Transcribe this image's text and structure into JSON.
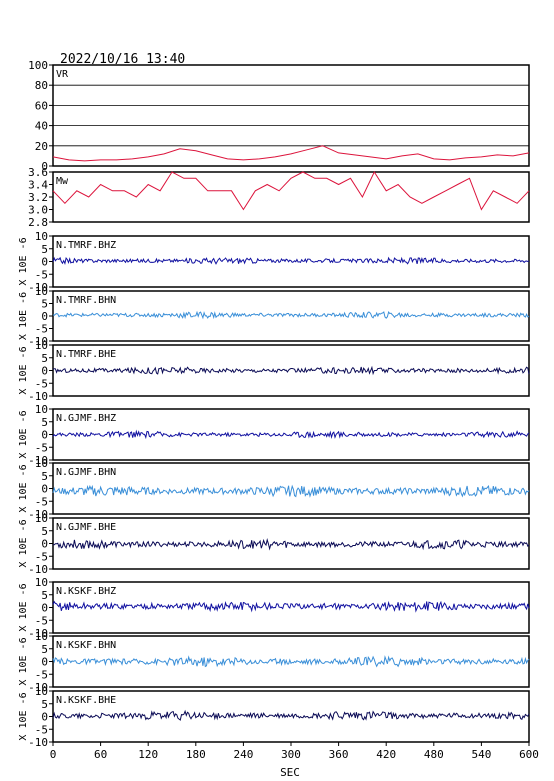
{
  "header": {
    "timestamp": "2022/10/16  13:40"
  },
  "xaxis": {
    "label": "SEC",
    "ticks": [
      0,
      60,
      120,
      180,
      240,
      300,
      360,
      420,
      480,
      540,
      600
    ]
  },
  "chart_data": [
    {
      "type": "line",
      "label": "VR",
      "ylim": [
        0,
        100
      ],
      "yticks": [
        0,
        20,
        40,
        60,
        80,
        100
      ],
      "grid": true,
      "color": "#dc143c",
      "x": [
        0,
        20,
        40,
        60,
        80,
        100,
        120,
        140,
        160,
        180,
        200,
        220,
        240,
        260,
        280,
        300,
        320,
        340,
        360,
        380,
        400,
        420,
        440,
        460,
        480,
        500,
        520,
        540,
        560,
        580,
        600
      ],
      "values": [
        9,
        6,
        5,
        6,
        6,
        7,
        9,
        12,
        17,
        15,
        11,
        7,
        6,
        7,
        9,
        12,
        16,
        20,
        13,
        11,
        9,
        7,
        10,
        12,
        7,
        6,
        8,
        9,
        11,
        10,
        13
      ]
    },
    {
      "type": "line",
      "label": "Mw",
      "ylim": [
        2.8,
        3.6
      ],
      "yticks": [
        2.8,
        3.0,
        3.2,
        3.4,
        3.6
      ],
      "color": "#dc143c",
      "x": [
        0,
        15,
        30,
        45,
        60,
        75,
        90,
        105,
        120,
        135,
        150,
        165,
        180,
        195,
        210,
        225,
        240,
        255,
        270,
        285,
        300,
        315,
        330,
        345,
        360,
        375,
        390,
        405,
        420,
        435,
        450,
        465,
        480,
        495,
        510,
        525,
        540,
        555,
        570,
        585,
        600
      ],
      "values": [
        3.3,
        3.1,
        3.3,
        3.2,
        3.4,
        3.3,
        3.3,
        3.2,
        3.4,
        3.3,
        3.6,
        3.5,
        3.5,
        3.3,
        3.3,
        3.3,
        3.0,
        3.3,
        3.4,
        3.3,
        3.5,
        3.6,
        3.5,
        3.5,
        3.4,
        3.5,
        3.2,
        3.6,
        3.3,
        3.4,
        3.2,
        3.1,
        3.2,
        3.3,
        3.4,
        3.5,
        3.0,
        3.3,
        3.2,
        3.1,
        3.3
      ]
    },
    {
      "type": "line",
      "label": "N.TMRF.BHZ",
      "ylabel": "X 10E -6",
      "ylim": [
        -10,
        10
      ],
      "yticks": [
        -10,
        -5,
        0,
        5,
        10
      ],
      "color": "#1010a0",
      "amplitude": 0.7,
      "offset": 0.3
    },
    {
      "type": "line",
      "label": "N.TMRF.BHN",
      "ylabel": "X 10E -6",
      "ylim": [
        -10,
        10
      ],
      "yticks": [
        -10,
        -5,
        0,
        5,
        10
      ],
      "color": "#3a8fd8",
      "amplitude": 0.7,
      "offset": 0.4
    },
    {
      "type": "line",
      "label": "N.TMRF.BHE",
      "ylabel": "X 10E -6",
      "ylim": [
        -10,
        10
      ],
      "yticks": [
        -10,
        -5,
        0,
        5,
        10
      ],
      "color": "#0a0a55",
      "amplitude": 0.8,
      "offset": 0.0
    },
    {
      "type": "line",
      "label": "N.GJMF.BHZ",
      "ylabel": "X 10E -6",
      "ylim": [
        -10,
        10
      ],
      "yticks": [
        -10,
        -5,
        0,
        5,
        10
      ],
      "color": "#1010a0",
      "amplitude": 0.7,
      "offset": 0.0
    },
    {
      "type": "line",
      "label": "N.GJMF.BHN",
      "ylabel": "X 10E -6",
      "ylim": [
        -10,
        10
      ],
      "yticks": [
        -10,
        -5,
        0,
        5,
        10
      ],
      "color": "#3a8fd8",
      "amplitude": 1.2,
      "offset": -1.0
    },
    {
      "type": "line",
      "label": "N.GJMF.BHE",
      "ylabel": "X 10E -6",
      "ylim": [
        -10,
        10
      ],
      "yticks": [
        -10,
        -5,
        0,
        5,
        10
      ],
      "color": "#0a0a55",
      "amplitude": 1.0,
      "offset": -0.3
    },
    {
      "type": "line",
      "label": "N.KSKF.BHZ",
      "ylabel": "X 10E -6",
      "ylim": [
        -10,
        10
      ],
      "yticks": [
        -10,
        -5,
        0,
        5,
        10
      ],
      "color": "#1010a0",
      "amplitude": 1.1,
      "offset": 0.5
    },
    {
      "type": "line",
      "label": "N.KSKF.BHN",
      "ylabel": "X 10E -6",
      "ylim": [
        -10,
        10
      ],
      "yticks": [
        -10,
        -5,
        0,
        5,
        10
      ],
      "color": "#3a8fd8",
      "amplitude": 1.1,
      "offset": 0.0
    },
    {
      "type": "line",
      "label": "N.KSKF.BHE",
      "ylabel": "X 10E -6",
      "ylim": [
        -10,
        10
      ],
      "yticks": [
        -10,
        -5,
        0,
        5,
        10
      ],
      "color": "#0a0a55",
      "amplitude": 1.0,
      "offset": 0.3
    }
  ]
}
